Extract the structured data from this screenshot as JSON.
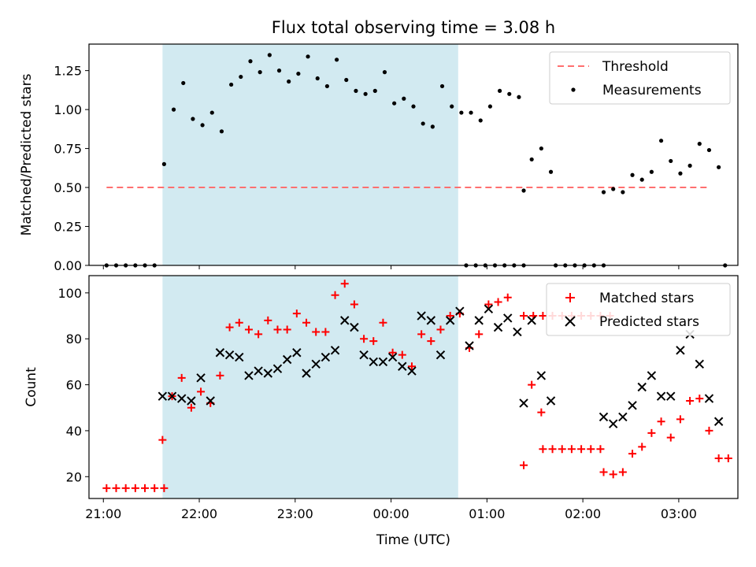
{
  "title": "Flux total observing time = 3.08 h",
  "colors": {
    "shade": "#add8e6",
    "threshold": "#ff6f6f",
    "measurements": "#000000",
    "matched": "#ff0000",
    "predicted": "#000000"
  },
  "chart_data": [
    {
      "type": "scatter",
      "ylabel": "Matched/Predicted stars",
      "ylim": [
        0,
        1.42
      ],
      "yticks": [
        "0.00",
        "0.25",
        "0.50",
        "0.75",
        "1.00",
        "1.25"
      ],
      "xlim": [
        "20:51",
        "03:37"
      ],
      "shaded_interval": [
        "21:37",
        "00:42"
      ],
      "legend": {
        "placement": "top-right",
        "entries": [
          "Threshold",
          "Measurements"
        ]
      },
      "threshold": {
        "name": "Threshold",
        "y": 0.5,
        "x_range": [
          "21:02",
          "03:18"
        ]
      },
      "series": [
        {
          "name": "Measurements",
          "points": [
            [
              "21:02",
              0
            ],
            [
              "21:08",
              0
            ],
            [
              "21:14",
              0
            ],
            [
              "21:20",
              0
            ],
            [
              "21:26",
              0
            ],
            [
              "21:32",
              0
            ],
            [
              "21:38",
              0.65
            ],
            [
              "21:44",
              1.0
            ],
            [
              "21:50",
              1.17
            ],
            [
              "21:56",
              0.94
            ],
            [
              "22:02",
              0.9
            ],
            [
              "22:08",
              0.98
            ],
            [
              "22:14",
              0.86
            ],
            [
              "22:20",
              1.16
            ],
            [
              "22:26",
              1.21
            ],
            [
              "22:32",
              1.31
            ],
            [
              "22:38",
              1.24
            ],
            [
              "22:44",
              1.35
            ],
            [
              "22:50",
              1.25
            ],
            [
              "22:56",
              1.18
            ],
            [
              "23:02",
              1.23
            ],
            [
              "23:08",
              1.34
            ],
            [
              "23:14",
              1.2
            ],
            [
              "23:20",
              1.15
            ],
            [
              "23:26",
              1.32
            ],
            [
              "23:32",
              1.19
            ],
            [
              "23:38",
              1.12
            ],
            [
              "23:44",
              1.1
            ],
            [
              "23:50",
              1.12
            ],
            [
              "23:56",
              1.24
            ],
            [
              "00:02",
              1.04
            ],
            [
              "00:08",
              1.07
            ],
            [
              "00:14",
              1.02
            ],
            [
              "00:20",
              0.91
            ],
            [
              "00:26",
              0.89
            ],
            [
              "00:32",
              1.15
            ],
            [
              "00:38",
              1.02
            ],
            [
              "00:44",
              0.98
            ],
            [
              "00:50",
              0.98
            ],
            [
              "00:56",
              0.93
            ],
            [
              "01:02",
              1.02
            ],
            [
              "01:08",
              1.12
            ],
            [
              "01:14",
              1.1
            ],
            [
              "01:20",
              1.08
            ],
            [
              "00:47",
              0
            ],
            [
              "00:53",
              0
            ],
            [
              "00:59",
              0
            ],
            [
              "01:05",
              0
            ],
            [
              "01:11",
              0
            ],
            [
              "01:17",
              0
            ],
            [
              "01:23",
              0
            ],
            [
              "01:23",
              0.48
            ],
            [
              "01:28",
              0.68
            ],
            [
              "01:34",
              0.75
            ],
            [
              "01:40",
              0.6
            ],
            [
              "01:43",
              0
            ],
            [
              "01:49",
              0
            ],
            [
              "01:55",
              0
            ],
            [
              "02:01",
              0
            ],
            [
              "02:07",
              0
            ],
            [
              "02:13",
              0
            ],
            [
              "02:13",
              0.47
            ],
            [
              "02:19",
              0.49
            ],
            [
              "02:25",
              0.47
            ],
            [
              "02:31",
              0.58
            ],
            [
              "02:37",
              0.55
            ],
            [
              "02:43",
              0.6
            ],
            [
              "02:49",
              0.8
            ],
            [
              "02:55",
              0.67
            ],
            [
              "03:01",
              0.59
            ],
            [
              "03:07",
              0.64
            ],
            [
              "03:13",
              0.78
            ],
            [
              "03:19",
              0.74
            ],
            [
              "03:25",
              0.63
            ],
            [
              "03:29",
              0
            ]
          ]
        }
      ]
    },
    {
      "type": "scatter",
      "ylabel": "Count",
      "xlabel": "Time (UTC)",
      "ylim": [
        10.5,
        107.5
      ],
      "yticks": [
        "20",
        "40",
        "60",
        "80",
        "100"
      ],
      "xlim": [
        "20:51",
        "03:37"
      ],
      "xticks": [
        "21:00",
        "22:00",
        "23:00",
        "00:00",
        "01:00",
        "02:00",
        "03:00"
      ],
      "shaded_interval": [
        "21:37",
        "00:42"
      ],
      "legend": {
        "placement": "top-right",
        "entries": [
          "Matched stars",
          "Predicted stars"
        ]
      },
      "series": [
        {
          "name": "Matched stars",
          "points": [
            [
              "21:02",
              15
            ],
            [
              "21:08",
              15
            ],
            [
              "21:14",
              15
            ],
            [
              "21:20",
              15
            ],
            [
              "21:26",
              15
            ],
            [
              "21:32",
              15
            ],
            [
              "21:38",
              15
            ],
            [
              "21:37",
              36
            ],
            [
              "21:43",
              55
            ],
            [
              "21:49",
              63
            ],
            [
              "21:55",
              50
            ],
            [
              "22:01",
              57
            ],
            [
              "22:07",
              52
            ],
            [
              "22:13",
              64
            ],
            [
              "22:19",
              85
            ],
            [
              "22:25",
              87
            ],
            [
              "22:31",
              84
            ],
            [
              "22:37",
              82
            ],
            [
              "22:43",
              88
            ],
            [
              "22:49",
              84
            ],
            [
              "22:55",
              84
            ],
            [
              "23:01",
              91
            ],
            [
              "23:07",
              87
            ],
            [
              "23:13",
              83
            ],
            [
              "23:19",
              83
            ],
            [
              "23:25",
              99
            ],
            [
              "23:31",
              104
            ],
            [
              "23:37",
              95
            ],
            [
              "23:43",
              80
            ],
            [
              "23:49",
              79
            ],
            [
              "23:55",
              87
            ],
            [
              "00:01",
              74
            ],
            [
              "00:07",
              73
            ],
            [
              "00:13",
              68
            ],
            [
              "00:19",
              82
            ],
            [
              "00:25",
              79
            ],
            [
              "00:31",
              84
            ],
            [
              "00:37",
              90
            ],
            [
              "00:43",
              91
            ],
            [
              "00:49",
              76
            ],
            [
              "00:55",
              82
            ],
            [
              "01:01",
              95
            ],
            [
              "01:07",
              96
            ],
            [
              "01:13",
              98
            ],
            [
              "01:23",
              90
            ],
            [
              "01:29",
              90
            ],
            [
              "01:35",
              90
            ],
            [
              "01:41",
              90
            ],
            [
              "01:47",
              90
            ],
            [
              "01:53",
              90
            ],
            [
              "01:59",
              90
            ],
            [
              "02:05",
              90
            ],
            [
              "02:11",
              90
            ],
            [
              "02:17",
              90
            ],
            [
              "01:23",
              25
            ],
            [
              "01:28",
              60
            ],
            [
              "01:34",
              48
            ],
            [
              "01:35",
              32
            ],
            [
              "01:41",
              32
            ],
            [
              "01:47",
              32
            ],
            [
              "01:53",
              32
            ],
            [
              "01:59",
              32
            ],
            [
              "02:05",
              32
            ],
            [
              "02:11",
              32
            ],
            [
              "02:13",
              22
            ],
            [
              "02:19",
              21
            ],
            [
              "02:25",
              22
            ],
            [
              "02:31",
              30
            ],
            [
              "02:37",
              33
            ],
            [
              "02:43",
              39
            ],
            [
              "02:49",
              44
            ],
            [
              "02:55",
              37
            ],
            [
              "03:01",
              45
            ],
            [
              "03:07",
              53
            ],
            [
              "03:13",
              54
            ],
            [
              "03:19",
              40
            ],
            [
              "03:25",
              28
            ],
            [
              "03:31",
              28
            ]
          ]
        },
        {
          "name": "Predicted stars",
          "points": [
            [
              "21:37",
              55
            ],
            [
              "21:43",
              55
            ],
            [
              "21:49",
              54
            ],
            [
              "21:55",
              53
            ],
            [
              "22:01",
              63
            ],
            [
              "22:07",
              53
            ],
            [
              "22:13",
              74
            ],
            [
              "22:19",
              73
            ],
            [
              "22:25",
              72
            ],
            [
              "22:31",
              64
            ],
            [
              "22:37",
              66
            ],
            [
              "22:43",
              65
            ],
            [
              "22:49",
              67
            ],
            [
              "22:55",
              71
            ],
            [
              "23:01",
              74
            ],
            [
              "23:07",
              65
            ],
            [
              "23:13",
              69
            ],
            [
              "23:19",
              72
            ],
            [
              "23:25",
              75
            ],
            [
              "23:31",
              88
            ],
            [
              "23:37",
              85
            ],
            [
              "23:43",
              73
            ],
            [
              "23:49",
              70
            ],
            [
              "23:55",
              70
            ],
            [
              "00:01",
              72
            ],
            [
              "00:07",
              68
            ],
            [
              "00:13",
              66
            ],
            [
              "00:19",
              90
            ],
            [
              "00:25",
              88
            ],
            [
              "00:31",
              73
            ],
            [
              "00:37",
              88
            ],
            [
              "00:43",
              92
            ],
            [
              "00:49",
              77
            ],
            [
              "00:55",
              88
            ],
            [
              "01:01",
              93
            ],
            [
              "01:07",
              85
            ],
            [
              "01:13",
              89
            ],
            [
              "01:19",
              83
            ],
            [
              "01:23",
              52
            ],
            [
              "01:28",
              88
            ],
            [
              "01:34",
              64
            ],
            [
              "01:40",
              53
            ],
            [
              "02:13",
              46
            ],
            [
              "02:19",
              43
            ],
            [
              "02:25",
              46
            ],
            [
              "02:31",
              51
            ],
            [
              "02:37",
              59
            ],
            [
              "02:43",
              64
            ],
            [
              "02:49",
              55
            ],
            [
              "02:55",
              55
            ],
            [
              "03:01",
              75
            ],
            [
              "03:07",
              82
            ],
            [
              "03:13",
              69
            ],
            [
              "03:19",
              54
            ],
            [
              "03:25",
              44
            ]
          ]
        }
      ]
    }
  ]
}
